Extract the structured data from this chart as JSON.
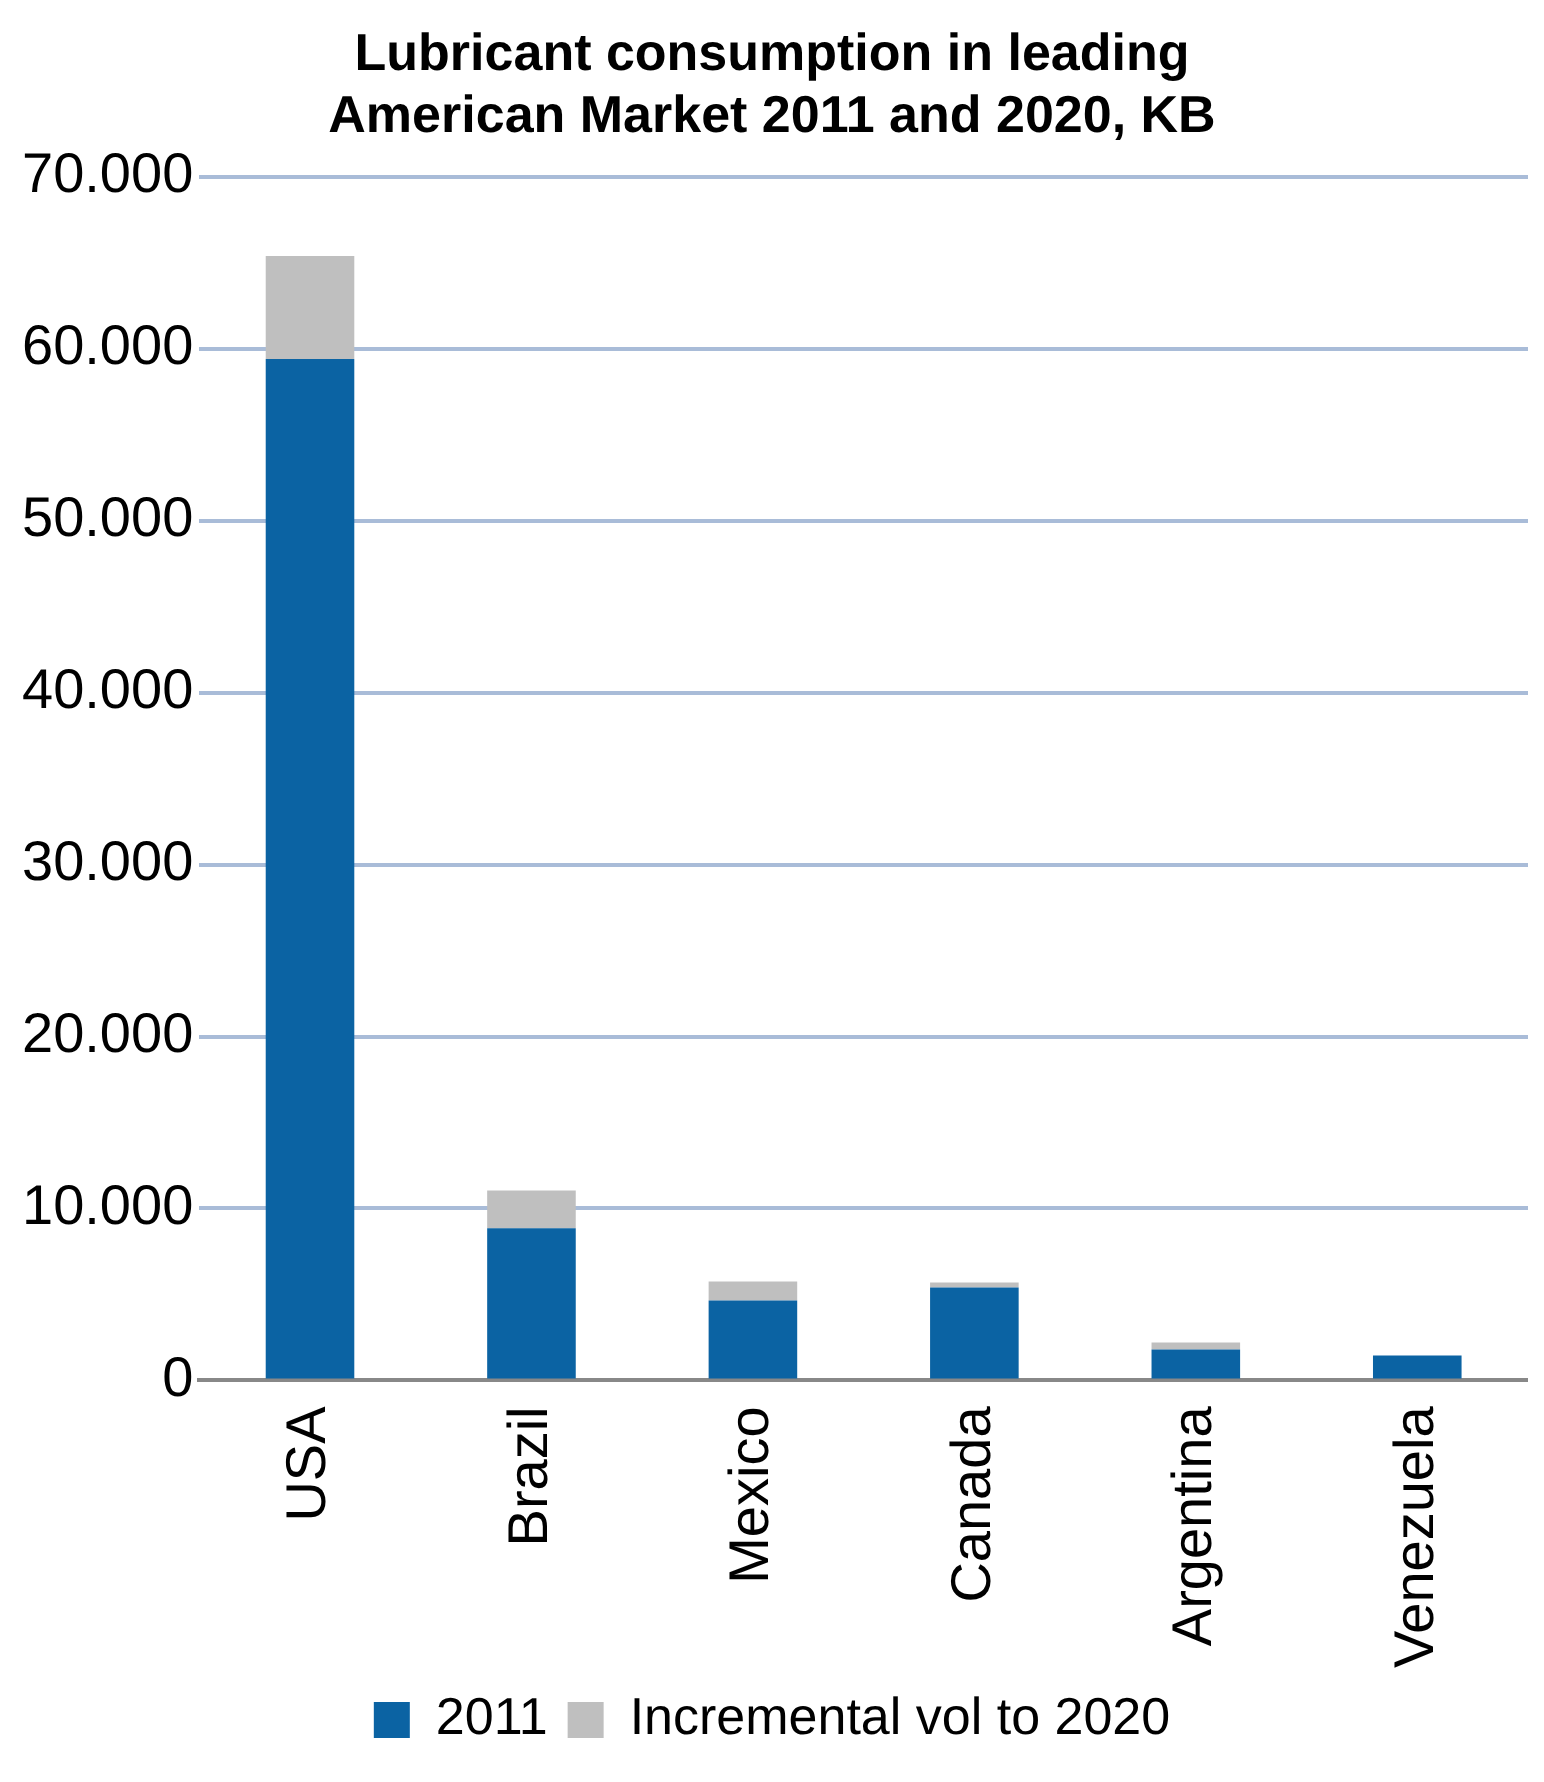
{
  "chart_data": {
    "type": "bar",
    "title": "Lubricant consumption in leading American Market 2011 and 2020, KB",
    "categories": [
      "USA",
      "Brazil",
      "Mexico",
      "Canada",
      "Argentina",
      "Venezuela"
    ],
    "stacked": true,
    "series": [
      {
        "name": "2011",
        "color": "#0b63a3",
        "values": [
          59400,
          8850,
          4650,
          5400,
          1800,
          1450
        ]
      },
      {
        "name": "Incremental vol to 2020",
        "color": "#bfbfbf",
        "values": [
          6000,
          2200,
          1100,
          300,
          400,
          0
        ]
      }
    ],
    "ylim": [
      0,
      70000
    ],
    "yticks": [
      {
        "value": 0,
        "label": "0"
      },
      {
        "value": 10000,
        "label": "10.000"
      },
      {
        "value": 20000,
        "label": "20.000"
      },
      {
        "value": 30000,
        "label": "30.000"
      },
      {
        "value": 40000,
        "label": "40.000"
      },
      {
        "value": 50000,
        "label": "50.000"
      },
      {
        "value": 60000,
        "label": "60.000"
      },
      {
        "value": 70000,
        "label": "70.000"
      }
    ],
    "grid": "y",
    "legend": "bottom"
  }
}
